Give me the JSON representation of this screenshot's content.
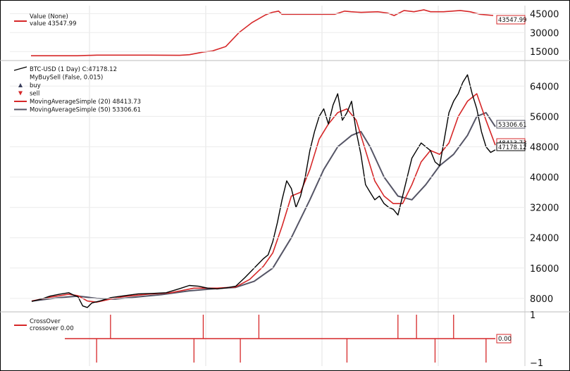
{
  "chart_data": [
    {
      "type": "line",
      "panel": "value",
      "ylim": [
        9000,
        48000
      ],
      "yticks": [
        "15000",
        "30000",
        "45000"
      ],
      "ytick_values": [
        15000,
        30000,
        45000
      ],
      "legend": {
        "header": "Value (None)",
        "line": "value 43547.99"
      },
      "last_value_tag": "43547.99",
      "series": [
        {
          "name": "value",
          "color": "#d62728",
          "points": [
            [
              0,
              11700
            ],
            [
              0.14,
              11700
            ],
            [
              0.2,
              12200
            ],
            [
              0.36,
              12200
            ],
            [
              0.45,
              12000
            ],
            [
              0.48,
              12500
            ],
            [
              0.52,
              14500
            ],
            [
              0.55,
              15500
            ],
            [
              0.59,
              19000
            ],
            [
              0.63,
              30000
            ],
            [
              0.67,
              38000
            ],
            [
              0.71,
              44000
            ],
            [
              0.73,
              46000
            ],
            [
              0.75,
              47000
            ],
            [
              0.76,
              44500
            ],
            [
              0.9,
              44500
            ],
            [
              0.92,
              44500
            ],
            [
              0.95,
              47000
            ],
            [
              0.97,
              46500
            ],
            [
              1.0,
              46000
            ],
            [
              1.05,
              46500
            ],
            [
              1.08,
              45500
            ],
            [
              1.1,
              43500
            ],
            [
              1.13,
              47500
            ],
            [
              1.16,
              46500
            ],
            [
              1.19,
              48000
            ],
            [
              1.21,
              46500
            ],
            [
              1.25,
              46500
            ],
            [
              1.3,
              47500
            ],
            [
              1.33,
              46500
            ],
            [
              1.36,
              44500
            ],
            [
              1.4,
              43547.99
            ]
          ]
        }
      ]
    },
    {
      "type": "line",
      "panel": "price",
      "ylim": [
        5000,
        70000
      ],
      "yticks": [
        "8000",
        "16000",
        "24000",
        "32000",
        "40000",
        "48000",
        "56000",
        "64000"
      ],
      "ytick_values": [
        8000,
        16000,
        24000,
        32000,
        40000,
        48000,
        56000,
        64000
      ],
      "legend": [
        {
          "label": "BTC-USD (1 Day) C:47178.12",
          "color": "#000000",
          "marker": "line"
        },
        {
          "label": "MyBuySell (False, 0.015)",
          "color": "#555555",
          "marker": "none"
        },
        {
          "label": "buy",
          "color": "#3a3f5c",
          "marker": "triangle-up"
        },
        {
          "label": "sell",
          "color": "#d62728",
          "marker": "triangle-down"
        },
        {
          "label": "MovingAverageSimple (20) 48413.73",
          "color": "#d62728",
          "marker": "line"
        },
        {
          "label": "MovingAverageSimple (50) 53306.61",
          "color": "#555566",
          "marker": "line"
        }
      ],
      "last_value_tags": [
        "53306.61",
        "48413.73",
        "47178.12"
      ],
      "x_span": [
        0,
        100
      ],
      "series": [
        {
          "name": "BTC-USD (1 Day)",
          "color": "#000000",
          "width": 1.4,
          "points": [
            [
              0,
              7200
            ],
            [
              2,
              7800
            ],
            [
              4,
              8600
            ],
            [
              6,
              9100
            ],
            [
              8,
              9500
            ],
            [
              9,
              8900
            ],
            [
              10,
              8400
            ],
            [
              11,
              6000
            ],
            [
              12,
              5600
            ],
            [
              13,
              6800
            ],
            [
              15,
              7400
            ],
            [
              17,
              8200
            ],
            [
              20,
              8700
            ],
            [
              23,
              9200
            ],
            [
              26,
              9300
            ],
            [
              29,
              9500
            ],
            [
              32,
              10600
            ],
            [
              34,
              11400
            ],
            [
              36,
              11200
            ],
            [
              38,
              10700
            ],
            [
              40,
              10500
            ],
            [
              42,
              10800
            ],
            [
              44,
              11200
            ],
            [
              46,
              13500
            ],
            [
              48,
              16000
            ],
            [
              50,
              18500
            ],
            [
              51,
              19500
            ],
            [
              52,
              23000
            ],
            [
              53,
              28000
            ],
            [
              54,
              34000
            ],
            [
              55,
              39000
            ],
            [
              56,
              37000
            ],
            [
              57,
              32000
            ],
            [
              58,
              35000
            ],
            [
              59,
              40000
            ],
            [
              60,
              47000
            ],
            [
              61,
              52000
            ],
            [
              62,
              56000
            ],
            [
              63,
              58000
            ],
            [
              64,
              54000
            ],
            [
              65,
              59000
            ],
            [
              66,
              62000
            ],
            [
              67,
              55000
            ],
            [
              68,
              57000
            ],
            [
              69,
              60000
            ],
            [
              70,
              52000
            ],
            [
              71,
              46000
            ],
            [
              72,
              38000
            ],
            [
              73,
              36000
            ],
            [
              74,
              34000
            ],
            [
              75,
              35000
            ],
            [
              76,
              33000
            ],
            [
              77,
              32000
            ],
            [
              78,
              31500
            ],
            [
              79,
              30000
            ],
            [
              80,
              35000
            ],
            [
              81,
              40000
            ],
            [
              82,
              45000
            ],
            [
              83,
              47000
            ],
            [
              84,
              49000
            ],
            [
              85,
              48000
            ],
            [
              86,
              47000
            ],
            [
              87,
              44000
            ],
            [
              88,
              43000
            ],
            [
              89,
              50000
            ],
            [
              90,
              57000
            ],
            [
              91,
              60000
            ],
            [
              92,
              62000
            ],
            [
              93,
              65000
            ],
            [
              94,
              67000
            ],
            [
              95,
              62000
            ],
            [
              96,
              58000
            ],
            [
              97,
              52000
            ],
            [
              98,
              48000
            ],
            [
              99,
              46500
            ],
            [
              100,
              47178.12
            ]
          ]
        },
        {
          "name": "MovingAverageSimple (20)",
          "color": "#d62728",
          "width": 1.6,
          "points": [
            [
              0,
              7300
            ],
            [
              4,
              8300
            ],
            [
              8,
              9100
            ],
            [
              10,
              8700
            ],
            [
              12,
              7300
            ],
            [
              14,
              7000
            ],
            [
              17,
              7800
            ],
            [
              20,
              8500
            ],
            [
              25,
              9100
            ],
            [
              30,
              9500
            ],
            [
              35,
              10700
            ],
            [
              40,
              10700
            ],
            [
              44,
              11000
            ],
            [
              47,
              13000
            ],
            [
              50,
              16500
            ],
            [
              52,
              20000
            ],
            [
              54,
              27000
            ],
            [
              56,
              35000
            ],
            [
              58,
              36000
            ],
            [
              60,
              42000
            ],
            [
              62,
              50000
            ],
            [
              64,
              54000
            ],
            [
              66,
              57000
            ],
            [
              68,
              58000
            ],
            [
              70,
              55000
            ],
            [
              72,
              47000
            ],
            [
              74,
              39000
            ],
            [
              76,
              35000
            ],
            [
              78,
              33000
            ],
            [
              80,
              33000
            ],
            [
              82,
              38000
            ],
            [
              84,
              44000
            ],
            [
              86,
              47000
            ],
            [
              88,
              46000
            ],
            [
              90,
              49000
            ],
            [
              92,
              56000
            ],
            [
              94,
              60000
            ],
            [
              96,
              62000
            ],
            [
              98,
              55000
            ],
            [
              100,
              48413.73
            ]
          ]
        },
        {
          "name": "MovingAverageSimple (50)",
          "color": "#555566",
          "width": 2.0,
          "points": [
            [
              0,
              7300
            ],
            [
              6,
              8200
            ],
            [
              10,
              8600
            ],
            [
              14,
              8000
            ],
            [
              18,
              7800
            ],
            [
              22,
              8300
            ],
            [
              28,
              9000
            ],
            [
              34,
              10000
            ],
            [
              40,
              10600
            ],
            [
              44,
              10900
            ],
            [
              48,
              12500
            ],
            [
              52,
              16000
            ],
            [
              56,
              24000
            ],
            [
              60,
              34000
            ],
            [
              63,
              42000
            ],
            [
              66,
              48000
            ],
            [
              69,
              51000
            ],
            [
              71,
              52000
            ],
            [
              73,
              48000
            ],
            [
              76,
              40000
            ],
            [
              79,
              35000
            ],
            [
              82,
              34000
            ],
            [
              85,
              38000
            ],
            [
              88,
              43000
            ],
            [
              91,
              46000
            ],
            [
              94,
              51000
            ],
            [
              96,
              56000
            ],
            [
              98,
              57000
            ],
            [
              100,
              53306.61
            ]
          ]
        }
      ],
      "markers_note": "buy/sell triangles present in legend"
    },
    {
      "type": "line",
      "panel": "crossover",
      "ylim": [
        -1,
        1
      ],
      "yticks": [
        "1",
        "−1"
      ],
      "ytick_values": [
        1,
        -1
      ],
      "legend": {
        "header": "CrossOver",
        "line": "crossover 0.00"
      },
      "last_value_tag": "0.00",
      "series": [
        {
          "name": "crossover",
          "color": "#d62728",
          "spikes": [
            [
              14,
              -1
            ],
            [
              17,
              1
            ],
            [
              35,
              -1
            ],
            [
              37,
              1
            ],
            [
              45,
              -1
            ],
            [
              49,
              1
            ],
            [
              68,
              -1
            ],
            [
              79,
              1
            ],
            [
              83,
              1
            ],
            [
              87,
              -1
            ],
            [
              91,
              1
            ],
            [
              98,
              -1
            ]
          ]
        }
      ]
    }
  ]
}
